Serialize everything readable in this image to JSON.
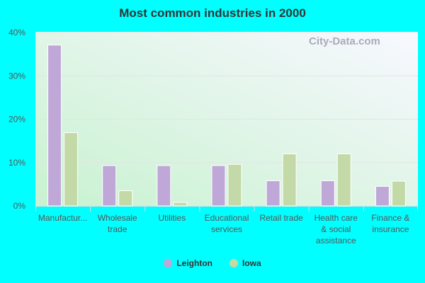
{
  "chart_data": {
    "type": "bar",
    "title": "Most common industries in 2000",
    "categories": [
      [
        "Manufactur..."
      ],
      [
        "Wholesale",
        "trade"
      ],
      [
        "Utilities"
      ],
      [
        "Educational",
        "services"
      ],
      [
        "Retail trade"
      ],
      [
        "Health care",
        "& social",
        "assistance"
      ],
      [
        "Finance &",
        "insurance"
      ]
    ],
    "series": [
      {
        "name": "Leighton",
        "color": "#bfa8d8",
        "values": [
          37.1,
          9.3,
          9.3,
          9.3,
          5.8,
          5.8,
          4.5
        ]
      },
      {
        "name": "Iowa",
        "color": "#c4d9a8",
        "values": [
          16.9,
          3.5,
          0.8,
          9.6,
          12.0,
          12.0,
          5.7
        ]
      }
    ],
    "yticks": [
      "0%",
      "10%",
      "20%",
      "30%",
      "40%"
    ],
    "ylim": [
      0,
      40
    ],
    "grid": true,
    "legend": "bottom"
  },
  "watermark": "City-Data.com"
}
